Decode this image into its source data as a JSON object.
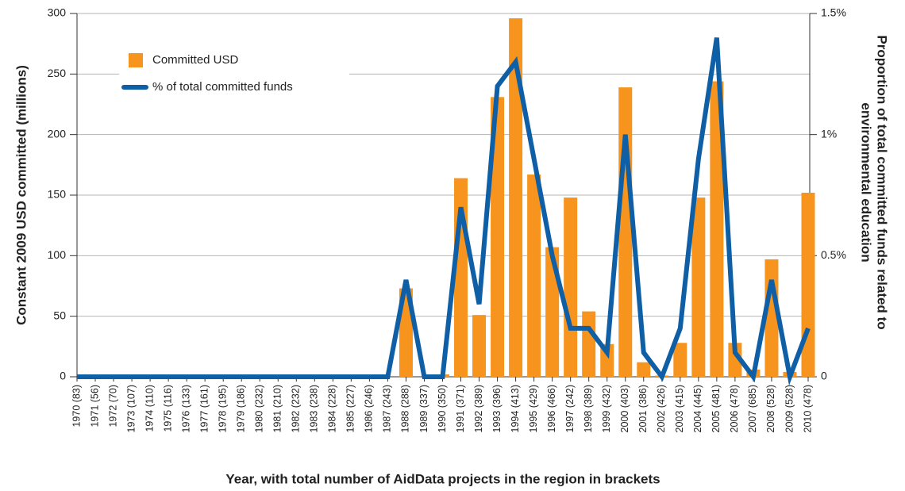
{
  "chart_data": {
    "type": "bar_line",
    "xlabel": "Year, with total number of AidData projects in the region in brackets",
    "ylabel": "Constant 2009 USD committed (millions)",
    "y2label": [
      "Proportion of total committed funds related to",
      "environmental education"
    ],
    "categories": [
      "1970 (83)",
      "1971 (56)",
      "1972 (70)",
      "1973 (107)",
      "1974 (110)",
      "1975 (116)",
      "1976 (133)",
      "1977 (161)",
      "1978 (195)",
      "1979 (186)",
      "1980 (232)",
      "1981 (210)",
      "1982 (232)",
      "1983 (238)",
      "1984 (228)",
      "1985 (227)",
      "1986 (246)",
      "1987 (243)",
      "1988 (288)",
      "1989 (337)",
      "1990 (350)",
      "1991 (371)",
      "1992 (389)",
      "1993 (396)",
      "1994 (413)",
      "1995 (429)",
      "1996 (466)",
      "1997 (242)",
      "1998 (389)",
      "1999 (432)",
      "2000 (403)",
      "2001 (386)",
      "2002 (426)",
      "2003 (415)",
      "2004 (445)",
      "2005 (481)",
      "2006 (478)",
      "2007 (685)",
      "2008 (528)",
      "2009 (528)",
      "2010 (478)"
    ],
    "series": [
      {
        "name": "Committed USD",
        "type": "bar",
        "color": "#f7941d",
        "values": [
          0,
          0,
          0,
          0,
          0,
          0,
          0,
          0,
          0,
          0,
          0,
          0,
          0,
          0,
          0,
          0,
          0,
          0,
          73,
          0,
          2,
          164,
          51,
          231,
          296,
          167,
          107,
          148,
          54,
          27,
          239,
          12,
          1,
          28,
          148,
          244,
          28,
          6,
          97,
          4,
          152
        ]
      },
      {
        "name": "% of total committed funds",
        "type": "line",
        "axis": "y2",
        "color": "#0f5fa6",
        "values": [
          0,
          0,
          0,
          0,
          0,
          0,
          0,
          0,
          0,
          0,
          0,
          0,
          0,
          0,
          0,
          0,
          0,
          0,
          0.4,
          0,
          0,
          0.7,
          0.3,
          1.2,
          1.3,
          0.9,
          0.5,
          0.2,
          0.2,
          0.1,
          1.0,
          0.1,
          0,
          0.2,
          0.9,
          1.4,
          0.1,
          0,
          0.4,
          0,
          0.2
        ]
      }
    ],
    "ylim": [
      0,
      300
    ],
    "yticks": [
      0,
      50,
      100,
      150,
      200,
      250,
      300
    ],
    "y2lim": [
      0,
      1.5
    ],
    "y2ticks": [
      0,
      {
        "value": 0.5,
        "label": "0.5%"
      },
      {
        "value": 1,
        "label": "1%"
      },
      {
        "value": 1.5,
        "label": "1.5%"
      }
    ],
    "grid": true,
    "legend": "upper left"
  }
}
